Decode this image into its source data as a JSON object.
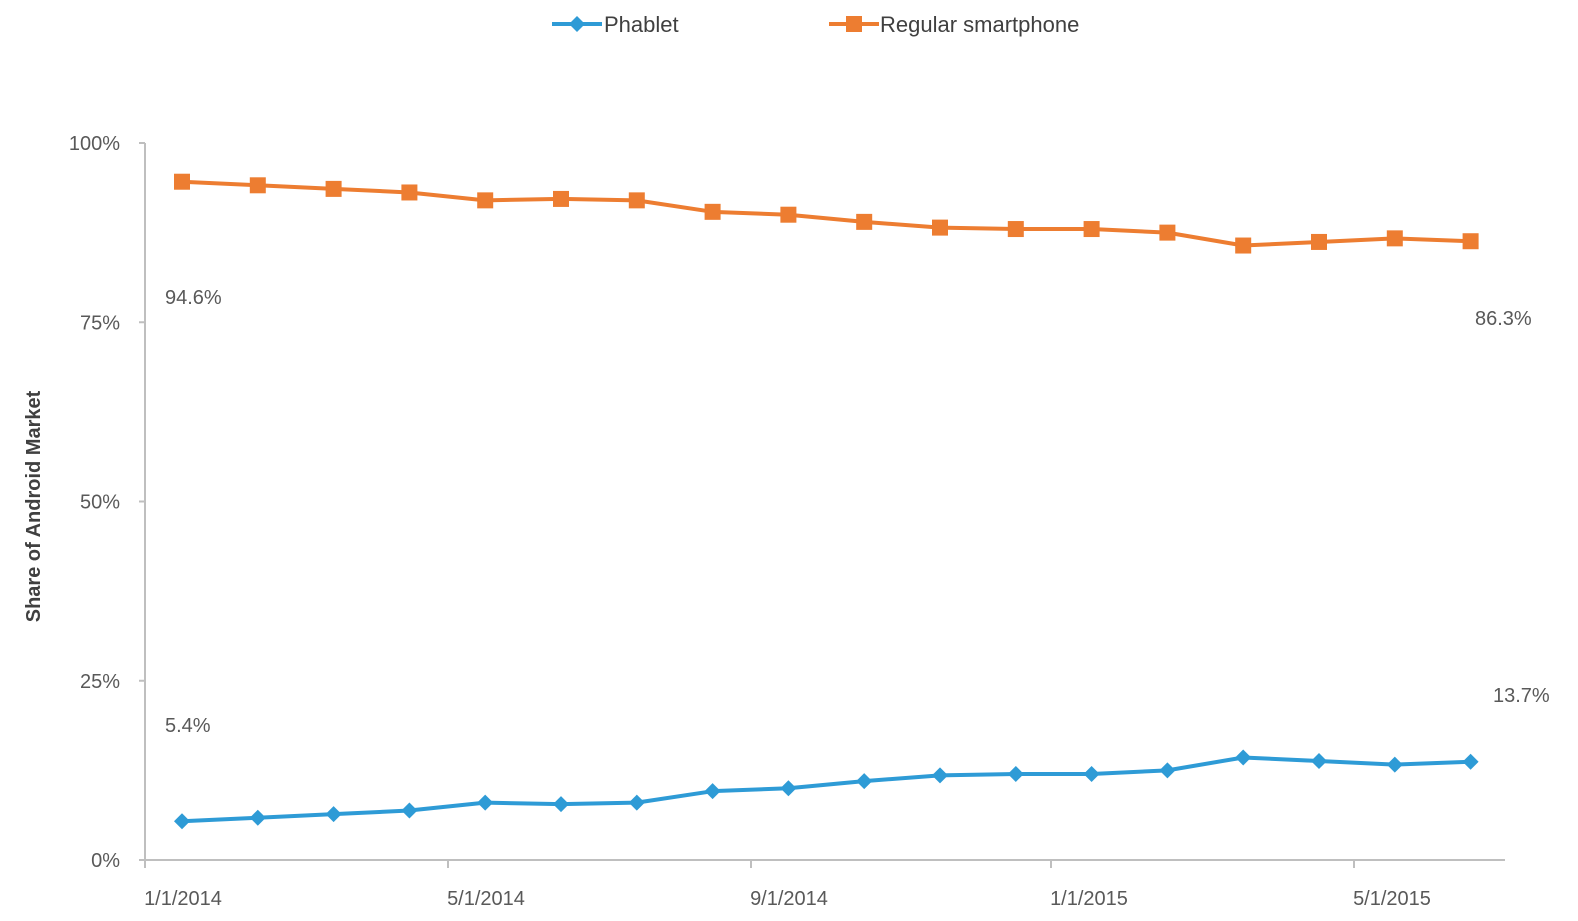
{
  "chart_data": {
    "type": "line",
    "ylabel": "Share of Android Market",
    "xlabel": "",
    "ylim": [
      0,
      1
    ],
    "y_ticks": [
      {
        "value": 0,
        "label": "0%"
      },
      {
        "value": 0.25,
        "label": "25%"
      },
      {
        "value": 0.5,
        "label": "50%"
      },
      {
        "value": 0.75,
        "label": "75%"
      },
      {
        "value": 1,
        "label": "100%"
      }
    ],
    "x_ticks": [
      "1/1/2014",
      "5/1/2014",
      "9/1/2014",
      "1/1/2015",
      "5/1/2015"
    ],
    "x": [
      "1/1/2014",
      "2/1/2014",
      "3/1/2014",
      "4/1/2014",
      "5/1/2014",
      "6/1/2014",
      "7/1/2014",
      "8/1/2014",
      "9/1/2014",
      "10/1/2014",
      "11/1/2014",
      "12/1/2014",
      "1/1/2015",
      "2/1/2015",
      "3/1/2015",
      "4/1/2015",
      "5/1/2015",
      "6/1/2015"
    ],
    "series": [
      {
        "name": "Phablet",
        "color": "#2e9bd6",
        "marker": "diamond",
        "values": [
          0.054,
          0.059,
          0.064,
          0.069,
          0.08,
          0.078,
          0.08,
          0.096,
          0.1,
          0.11,
          0.118,
          0.12,
          0.12,
          0.125,
          0.143,
          0.138,
          0.133,
          0.137
        ],
        "labels": [
          {
            "index": 0,
            "text": "5.4%"
          },
          {
            "index": 17,
            "text": "13.7%"
          }
        ]
      },
      {
        "name": "Regular smartphone",
        "color": "#ed7d31",
        "marker": "square",
        "values": [
          0.946,
          0.941,
          0.936,
          0.931,
          0.92,
          0.922,
          0.92,
          0.904,
          0.9,
          0.89,
          0.882,
          0.88,
          0.88,
          0.875,
          0.857,
          0.862,
          0.867,
          0.863
        ],
        "labels": [
          {
            "index": 0,
            "text": "94.6%"
          },
          {
            "index": 17,
            "text": "86.3%"
          }
        ]
      }
    ],
    "grid": false,
    "legend_position": "top"
  }
}
